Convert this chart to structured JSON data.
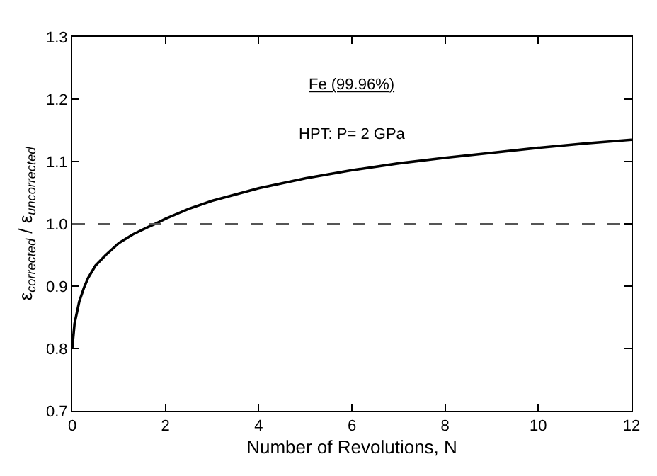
{
  "chart_data": {
    "type": "line",
    "xlabel": "Number of Revolutions, N",
    "ylabel": "ε$_{corrected}$ / ε$_{uncorrected}$",
    "x": [
      0,
      0.05,
      0.15,
      0.25,
      0.34,
      0.5,
      0.72,
      1.0,
      1.3,
      1.6,
      1.78,
      2,
      2.5,
      3,
      4,
      5,
      6,
      7,
      8,
      9,
      10,
      11,
      12
    ],
    "series": [
      {
        "color": "#000000",
        "values": [
          0.8,
          0.84,
          0.875,
          0.897,
          0.913,
          0.933,
          0.95,
          0.969,
          0.983,
          0.994,
          1.0,
          1.008,
          1.024,
          1.037,
          1.057,
          1.073,
          1.086,
          1.097,
          1.106,
          1.114,
          1.122,
          1.129,
          1.135
        ]
      }
    ],
    "xlim": [
      0,
      12
    ],
    "xticks": [
      0,
      2,
      4,
      6,
      8,
      10,
      12
    ],
    "ylim": [
      0.7,
      1.3
    ],
    "yticks": [
      0.7,
      0.8,
      0.9,
      {
        "value": 1.0,
        "label": "1.0"
      },
      1.1,
      1.2,
      1.3
    ],
    "ref_lines": [
      {
        "axis": "y",
        "value": 1.0,
        "color": "#555555",
        "line_style": "dashed"
      }
    ],
    "annotations": [
      {
        "text": "Fe (99.96%)"
      },
      {
        "text": "HPT: P= 2 GPa"
      }
    ],
    "marker": "none",
    "line_style": "solid"
  }
}
